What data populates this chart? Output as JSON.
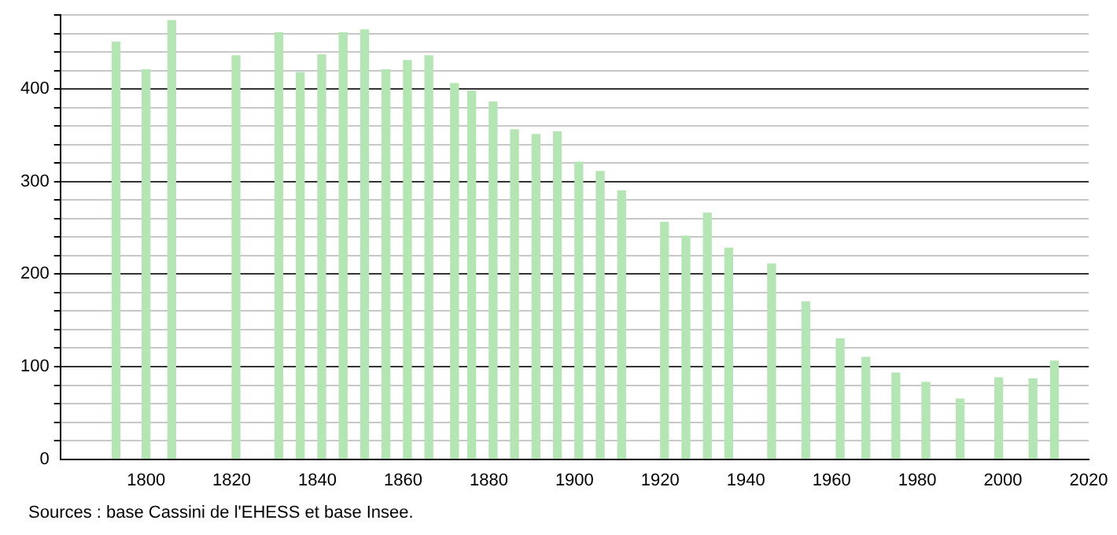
{
  "chart_data": {
    "type": "bar",
    "x": [
      1793,
      1800,
      1806,
      1821,
      1831,
      1836,
      1841,
      1846,
      1851,
      1856,
      1861,
      1866,
      1872,
      1876,
      1881,
      1886,
      1891,
      1896,
      1901,
      1906,
      1911,
      1921,
      1926,
      1931,
      1936,
      1946,
      1954,
      1962,
      1968,
      1975,
      1982,
      1990,
      1999,
      2007,
      2012
    ],
    "values": [
      451,
      421,
      474,
      436,
      461,
      418,
      437,
      461,
      464,
      421,
      431,
      436,
      406,
      398,
      386,
      356,
      351,
      354,
      321,
      311,
      290,
      256,
      241,
      266,
      228,
      211,
      170,
      130,
      110,
      93,
      83,
      65,
      88,
      87,
      106
    ],
    "color": "#b3e6b3",
    "xlim": [
      1780,
      2020
    ],
    "xticks": [
      1800,
      1820,
      1840,
      1860,
      1880,
      1900,
      1920,
      1940,
      1960,
      1980,
      2000,
      2020
    ],
    "ylim": [
      0,
      480
    ],
    "yticks": [
      0,
      {
        "value": 20,
        "label": null
      },
      {
        "value": 40,
        "label": null
      },
      {
        "value": 60,
        "label": null
      },
      {
        "value": 80,
        "label": null
      },
      100,
      {
        "value": 120,
        "label": null
      },
      {
        "value": 140,
        "label": null
      },
      {
        "value": 160,
        "label": null
      },
      {
        "value": 180,
        "label": null
      },
      200,
      {
        "value": 220,
        "label": null
      },
      {
        "value": 240,
        "label": null
      },
      {
        "value": 260,
        "label": null
      },
      {
        "value": 280,
        "label": null
      },
      300,
      {
        "value": 320,
        "label": null
      },
      {
        "value": 340,
        "label": null
      },
      {
        "value": 360,
        "label": null
      },
      {
        "value": 380,
        "label": null
      },
      400,
      {
        "value": 420,
        "label": null
      },
      {
        "value": 440,
        "label": null
      },
      {
        "value": 460,
        "label": null
      },
      {
        "value": 480,
        "label": null
      }
    ],
    "grid": "y",
    "annotations": [
      "Sources : base Cassini de l'EHESS et base Insee."
    ]
  }
}
